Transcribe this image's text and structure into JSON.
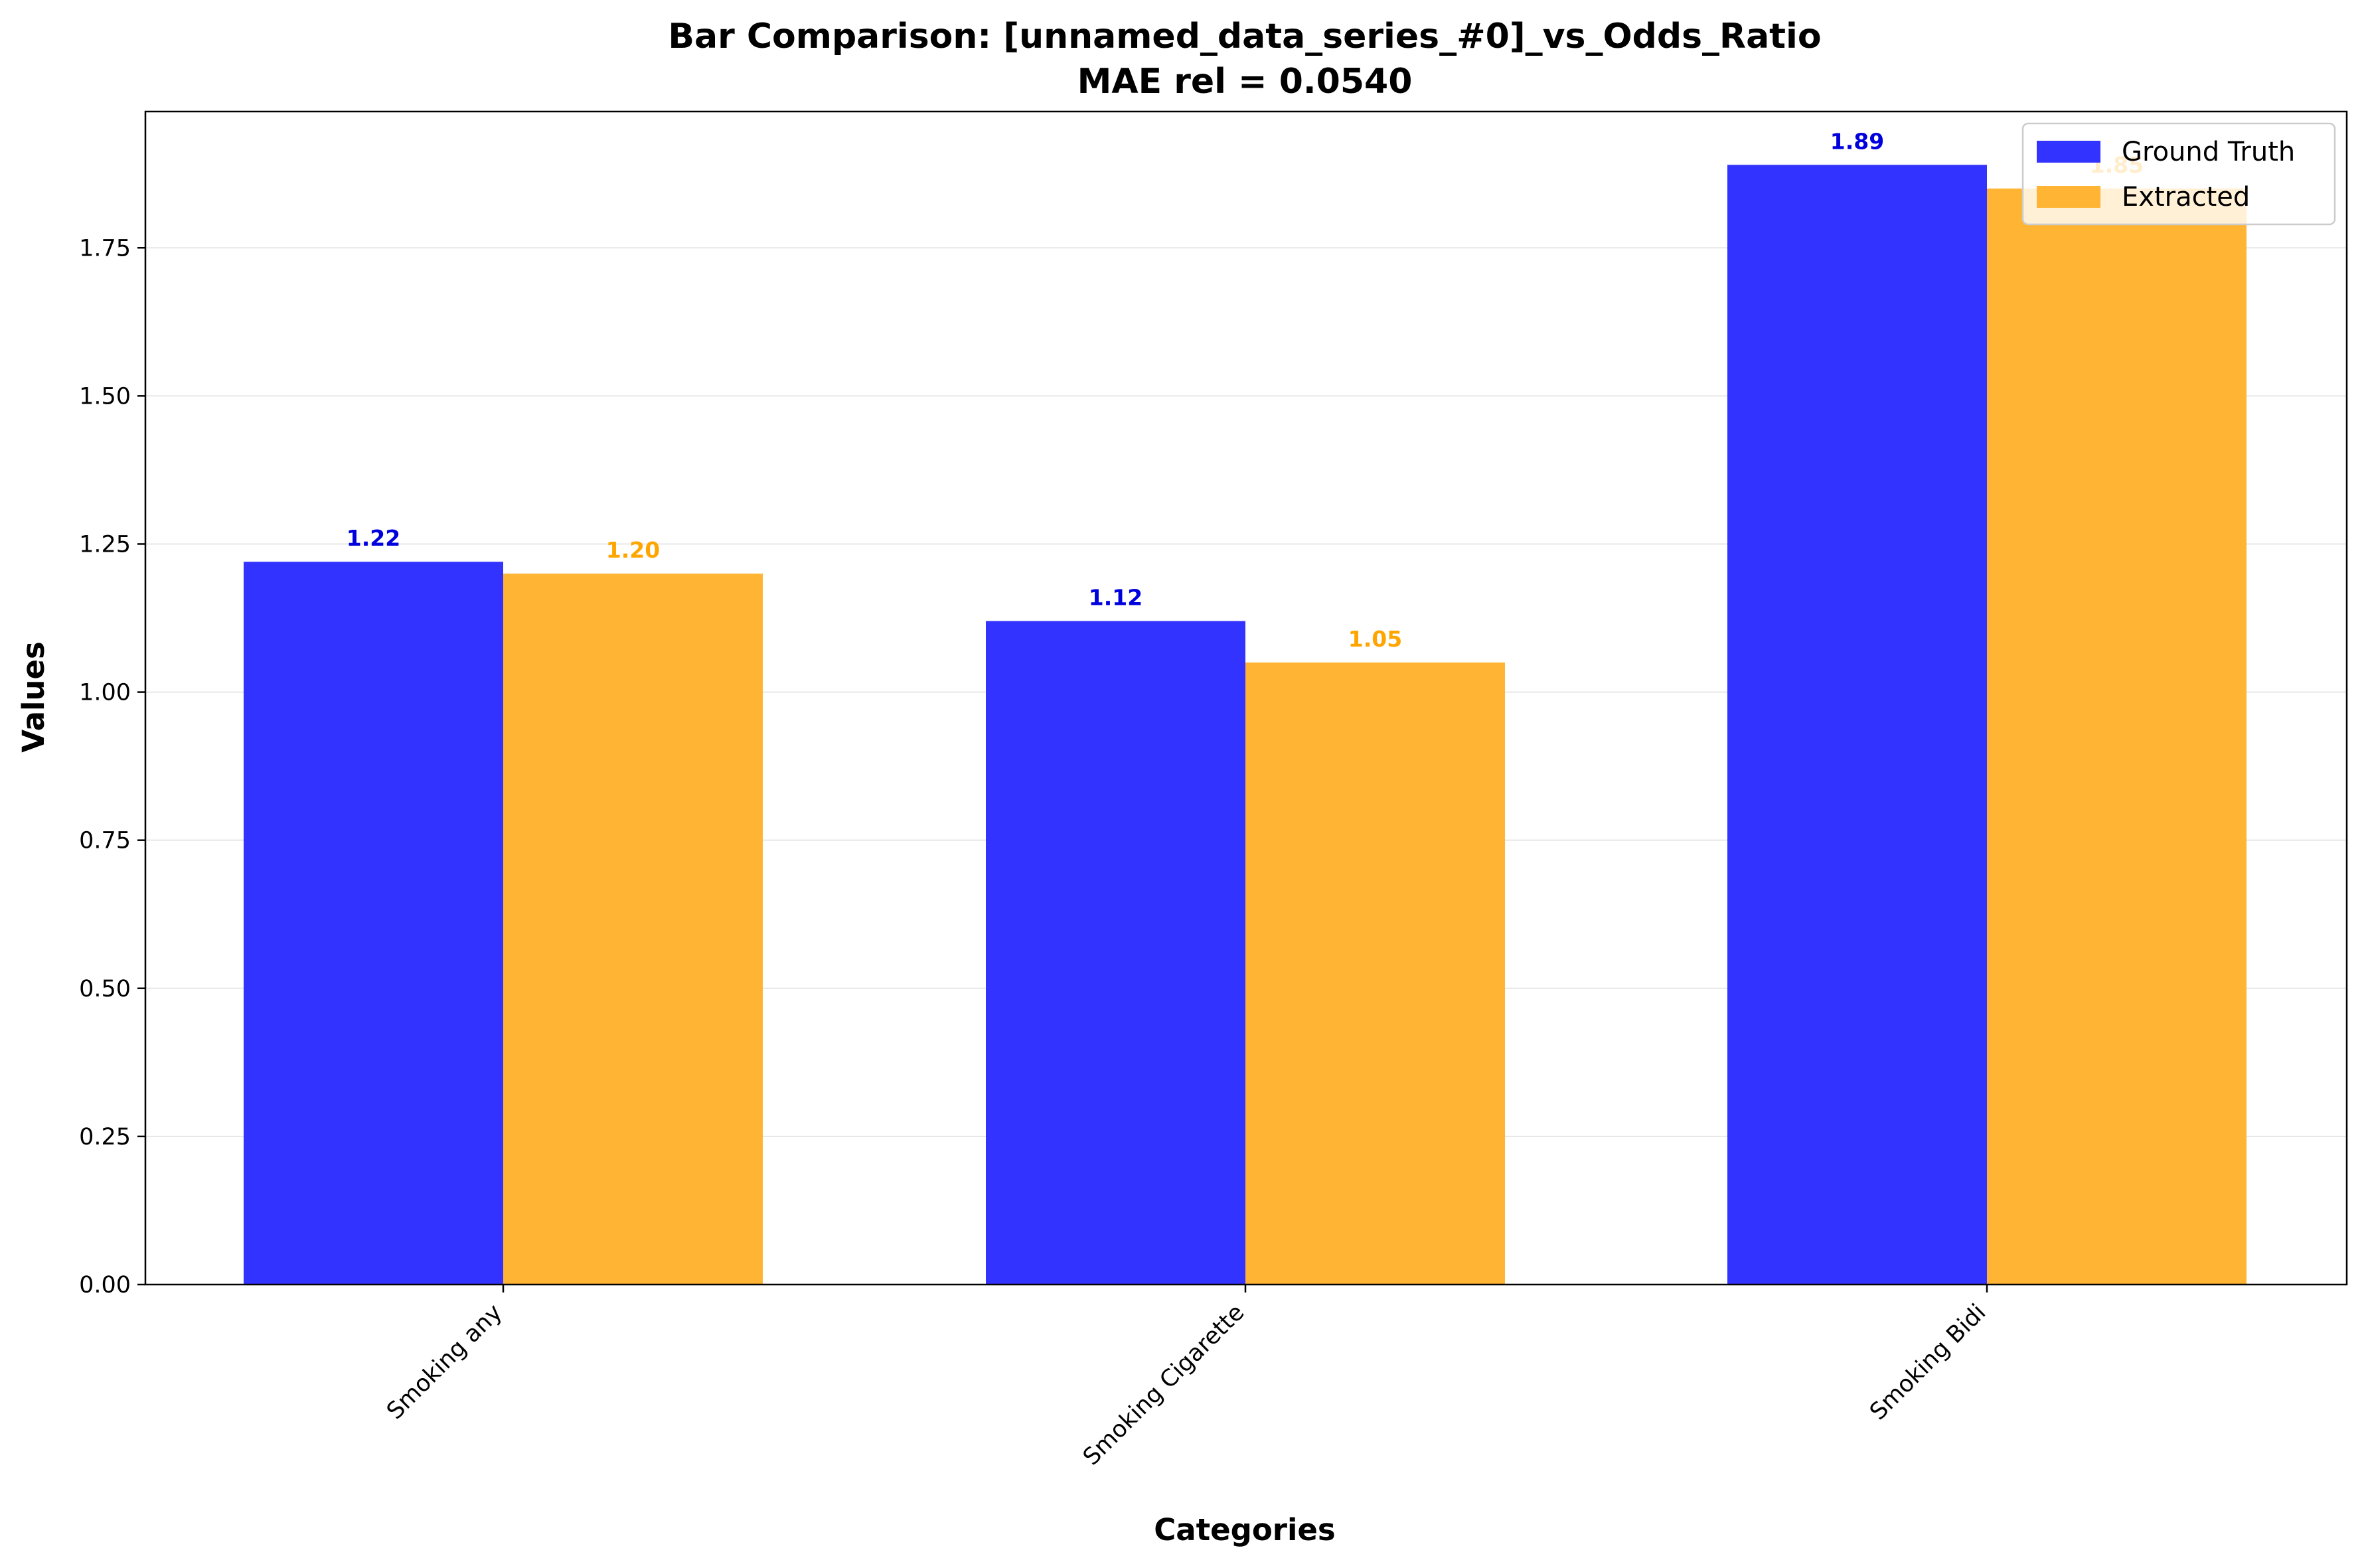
{
  "chart_data": {
    "type": "bar",
    "title": "Bar Comparison: [unnamed_data_series_#0]_vs_Odds_Ratio",
    "subtitle": "MAE rel = 0.0540",
    "xlabel": "Categories",
    "ylabel": "Values",
    "categories": [
      "Smoking any",
      "Smoking Cigarette",
      "Smoking Bidi"
    ],
    "series": [
      {
        "name": "Ground Truth",
        "color": "#3333ff",
        "values": [
          1.22,
          1.12,
          1.89
        ],
        "labels": [
          "1.22",
          "1.12",
          "1.89"
        ]
      },
      {
        "name": "Extracted",
        "color": "#ffb433",
        "values": [
          1.2,
          1.05,
          1.85
        ],
        "labels": [
          "1.20",
          "1.05",
          "1.85"
        ]
      }
    ],
    "label_colors": [
      "#0000dd",
      "#ffa500"
    ],
    "ylim": [
      0,
      1.98
    ],
    "yticks": [
      "0.00",
      "0.25",
      "0.50",
      "0.75",
      "1.00",
      "1.25",
      "1.50",
      "1.75"
    ],
    "grid": true,
    "legend_position": "top-right"
  }
}
